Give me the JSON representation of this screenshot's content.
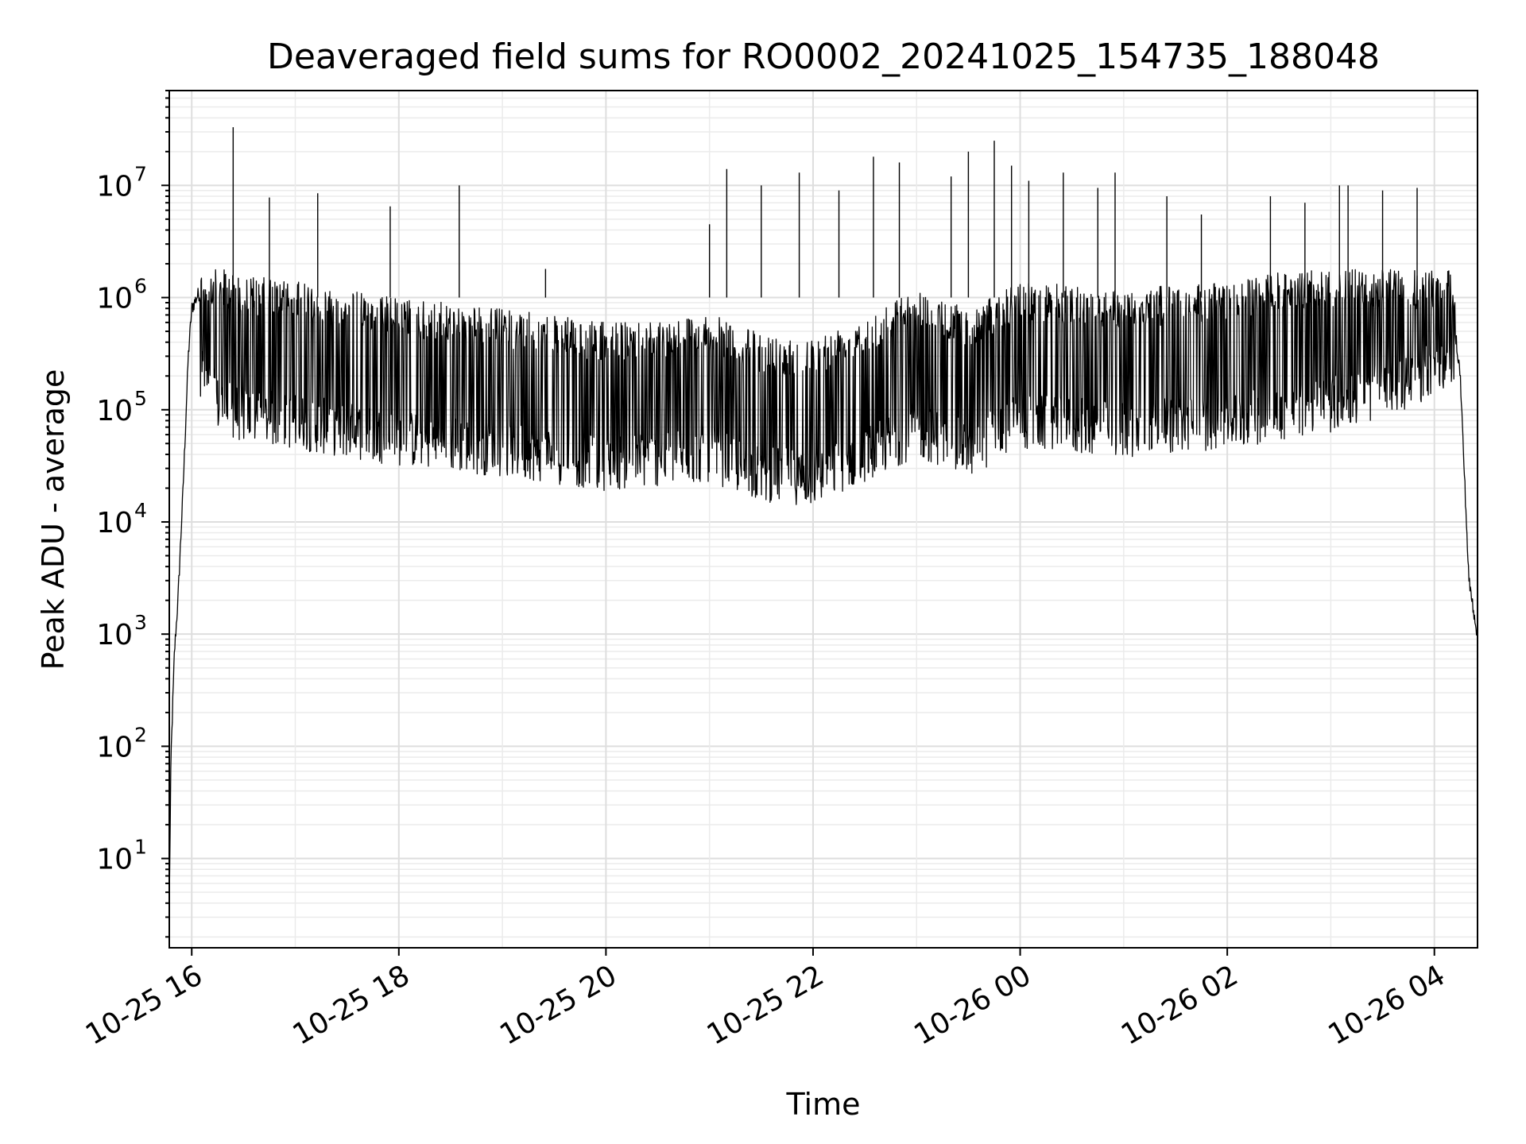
{
  "chart_data": {
    "type": "line",
    "title": "Deaveraged field sums for RO0002_20241025_154735_188048",
    "xlabel": "Time",
    "ylabel": "Peak ADU - average",
    "yscale": "log",
    "ylim": [
      1.6,
      70000000
    ],
    "xlim": [
      "2024-10-25 15:47",
      "2024-10-26 04:25"
    ],
    "grid": true,
    "legend": "none",
    "line_color": "#000000",
    "x_ticks": [
      "10-25 16",
      "10-25 18",
      "10-25 20",
      "10-25 22",
      "10-26 00",
      "10-26 02",
      "10-26 04"
    ],
    "y_ticks": [
      {
        "base": "10",
        "exp": "1",
        "value": 10
      },
      {
        "base": "10",
        "exp": "2",
        "value": 100
      },
      {
        "base": "10",
        "exp": "3",
        "value": 1000
      },
      {
        "base": "10",
        "exp": "4",
        "value": 10000
      },
      {
        "base": "10",
        "exp": "5",
        "value": 100000
      },
      {
        "base": "10",
        "exp": "6",
        "value": 1000000
      },
      {
        "base": "10",
        "exp": "7",
        "value": 10000000
      }
    ],
    "series": [
      {
        "x": [
          "2024-10-25 15:47",
          "2024-10-25 15:48",
          "2024-10-25 15:50",
          "2024-10-25 15:52",
          "2024-10-25 15:55",
          "2024-10-25 15:58",
          "2024-10-25 16:00",
          "2024-10-25 16:04",
          "2024-10-25 16:08",
          "2024-10-25 16:15",
          "2024-10-25 16:30",
          "2024-10-25 17:00",
          "2024-10-25 18:00",
          "2024-10-25 19:00",
          "2024-10-25 20:00",
          "2024-10-25 21:00",
          "2024-10-25 21:30",
          "2024-10-25 22:00",
          "2024-10-25 23:00",
          "2024-10-25 23:30",
          "2024-10-26 00:00",
          "2024-10-26 01:00",
          "2024-10-26 02:00",
          "2024-10-26 03:00",
          "2024-10-26 03:50",
          "2024-10-26 04:00",
          "2024-10-26 04:10",
          "2024-10-26 04:15",
          "2024-10-26 04:20",
          "2024-10-26 04:25"
        ],
        "y": [
          4,
          80,
          700,
          2000,
          20000,
          300000,
          800000,
          1100000,
          900000,
          500000,
          400000,
          350000,
          250000,
          200000,
          150000,
          180000,
          120000,
          110000,
          300000,
          200000,
          350000,
          300000,
          350000,
          500000,
          800000,
          1200000,
          1000000,
          200000,
          3000,
          1000
        ],
        "spikes": [
          {
            "x": "2024-10-25 16:24",
            "y": 33000000
          },
          {
            "x": "2024-10-25 16:27",
            "y": 1500000
          },
          {
            "x": "2024-10-25 16:45",
            "y": 7800000
          },
          {
            "x": "2024-10-25 17:13",
            "y": 8500000
          },
          {
            "x": "2024-10-25 17:55",
            "y": 6500000
          },
          {
            "x": "2024-10-25 18:35",
            "y": 10000000
          },
          {
            "x": "2024-10-25 19:25",
            "y": 1800000
          },
          {
            "x": "2024-10-25 21:00",
            "y": 4500000
          },
          {
            "x": "2024-10-25 21:10",
            "y": 14000000
          },
          {
            "x": "2024-10-25 21:30",
            "y": 10000000
          },
          {
            "x": "2024-10-25 21:52",
            "y": 13000000
          },
          {
            "x": "2024-10-25 22:15",
            "y": 9000000
          },
          {
            "x": "2024-10-25 22:35",
            "y": 18000000
          },
          {
            "x": "2024-10-25 22:50",
            "y": 16000000
          },
          {
            "x": "2024-10-25 23:20",
            "y": 12000000
          },
          {
            "x": "2024-10-25 23:30",
            "y": 20000000
          },
          {
            "x": "2024-10-25 23:45",
            "y": 25000000
          },
          {
            "x": "2024-10-25 23:55",
            "y": 15000000
          },
          {
            "x": "2024-10-26 00:05",
            "y": 11000000
          },
          {
            "x": "2024-10-26 00:25",
            "y": 13000000
          },
          {
            "x": "2024-10-26 00:45",
            "y": 9500000
          },
          {
            "x": "2024-10-26 00:55",
            "y": 13000000
          },
          {
            "x": "2024-10-26 01:25",
            "y": 8000000
          },
          {
            "x": "2024-10-26 01:45",
            "y": 5500000
          },
          {
            "x": "2024-10-26 02:25",
            "y": 8000000
          },
          {
            "x": "2024-10-26 02:45",
            "y": 7000000
          },
          {
            "x": "2024-10-26 03:05",
            "y": 10000000
          },
          {
            "x": "2024-10-26 03:10",
            "y": 10000000
          },
          {
            "x": "2024-10-26 03:30",
            "y": 9000000
          },
          {
            "x": "2024-10-26 03:50",
            "y": 9500000
          }
        ]
      }
    ]
  }
}
